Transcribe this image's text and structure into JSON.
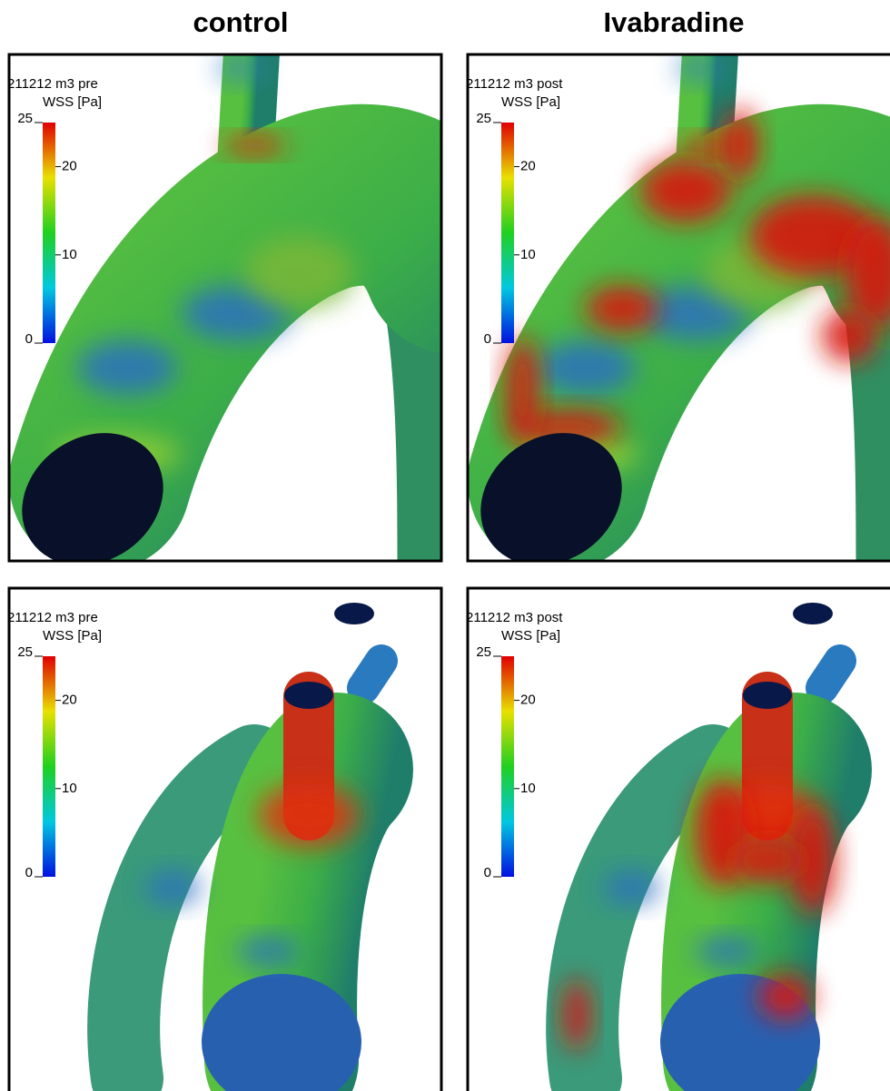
{
  "column_titles": [
    "control",
    "Ivabradine"
  ],
  "panels": [
    {
      "label": "211212 m3 pre",
      "colorbar": {
        "title": "WSS [Pa]",
        "range": [
          0,
          25
        ],
        "ticks": [
          25,
          20,
          10,
          0
        ]
      }
    },
    {
      "label": "211212 m3 post",
      "colorbar": {
        "title": "WSS [Pa]",
        "range": [
          0,
          25
        ],
        "ticks": [
          25,
          20,
          10,
          0
        ]
      }
    },
    {
      "label": "211212 m3 pre",
      "colorbar": {
        "title": "WSS [Pa]",
        "range": [
          0,
          25
        ],
        "ticks": [
          25,
          20,
          10,
          0
        ]
      }
    },
    {
      "label": "211212 m3 post",
      "colorbar": {
        "title": "WSS [Pa]",
        "range": [
          0,
          25
        ],
        "ticks": [
          25,
          20,
          10,
          0
        ]
      }
    }
  ]
}
